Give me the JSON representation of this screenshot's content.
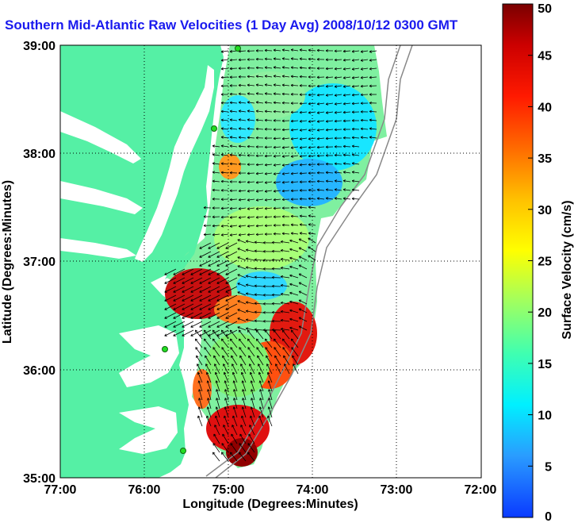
{
  "title": "Southern Mid-Atlantic Raw Velocities (1 Day Avg) 2008/10/12 0300 GMT",
  "x_axis": {
    "label": "Longitude (Degrees:Minutes)",
    "ticks": [
      "77:00",
      "76:00",
      "75:00",
      "74:00",
      "73:00",
      "72:00"
    ]
  },
  "y_axis": {
    "label": "Latitude (Degrees:Minutes)",
    "ticks": [
      "39:00",
      "38:00",
      "37:00",
      "36:00",
      "35:00"
    ]
  },
  "colorbar": {
    "label": "Surface Velocity (cm/s)",
    "ticks": [
      "50",
      "45",
      "40",
      "35",
      "30",
      "25",
      "20",
      "15",
      "10",
      "5",
      "0"
    ],
    "min": 0,
    "max": 50
  },
  "colors": {
    "land": "#55f0a5",
    "title": "#1a1aee",
    "station": "#22dd22"
  }
}
